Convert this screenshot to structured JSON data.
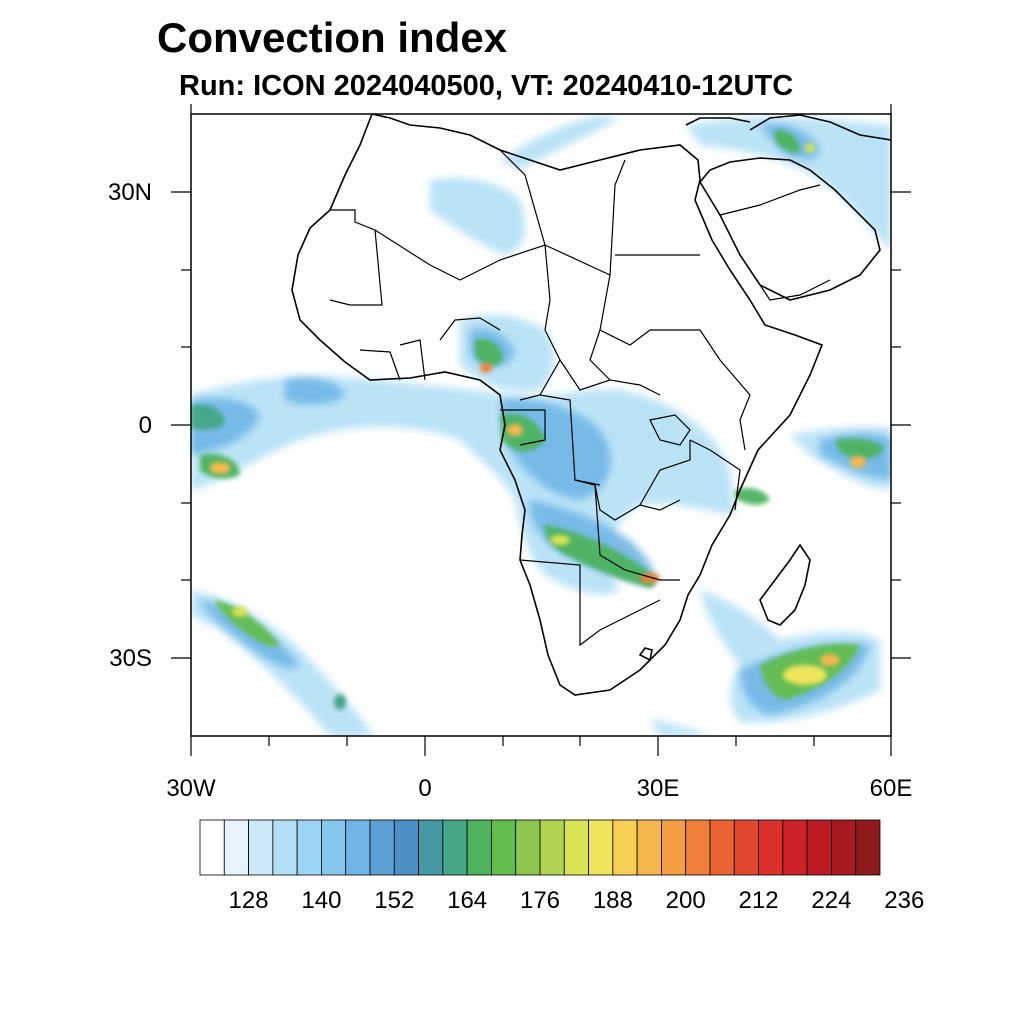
{
  "title": "Convection index",
  "subtitle": "Run: ICON 2024040500,  VT: 20240410-12UTC",
  "lat_labels": [
    "30N",
    "0",
    "30S"
  ],
  "lon_labels": [
    "30W",
    "0",
    "30E",
    "60E"
  ],
  "map_extent": {
    "lon_min": -30,
    "lon_max": 60,
    "lat_min": -40,
    "lat_max": 40
  },
  "colorbar": {
    "colors": [
      "#ffffff",
      "#e6f4fc",
      "#cce9f8",
      "#b4e0f6",
      "#9dd6f4",
      "#85c7ed",
      "#6fb6e6",
      "#5da0d7",
      "#4d8fc7",
      "#4698a4",
      "#47a685",
      "#4db35e",
      "#62bd4d",
      "#8dc74f",
      "#b2d251",
      "#d9e454",
      "#efe45a",
      "#f6cf55",
      "#f6b84e",
      "#f49d43",
      "#f07f3b",
      "#eb6333",
      "#e3472e",
      "#da312b",
      "#cf2228",
      "#bd1a24",
      "#a81a1f",
      "#8e1a1c"
    ],
    "tick_labels": [
      "128",
      "140",
      "152",
      "164",
      "176",
      "188",
      "200",
      "212",
      "224",
      "236"
    ]
  },
  "chart_data": {
    "type": "heatmap",
    "title": "Convection index",
    "subtitle": "Run: ICON 2024040500,  VT: 20240410-12UTC",
    "x_ticks": [
      "30W",
      "0",
      "30E",
      "60E"
    ],
    "y_ticks": [
      "30N",
      "0",
      "30S"
    ],
    "xlim": [
      -30,
      60
    ],
    "ylim": [
      -40,
      40
    ],
    "colorbar_ticks": [
      128,
      140,
      152,
      164,
      176,
      188,
      200,
      212,
      224,
      236
    ]
  }
}
